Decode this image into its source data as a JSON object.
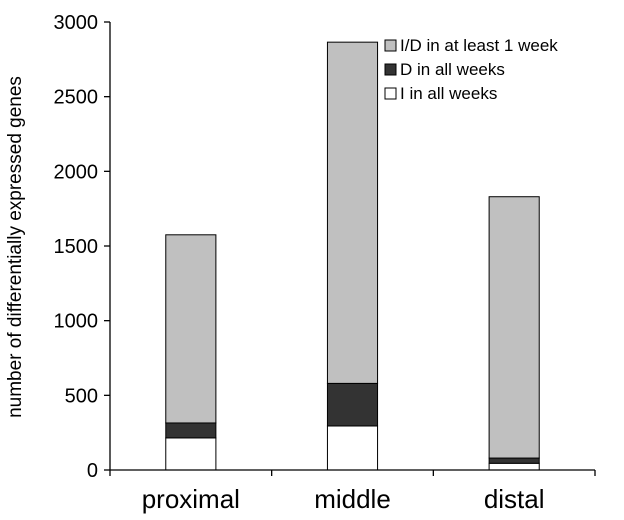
{
  "chart_data": {
    "type": "bar",
    "stacked": true,
    "title": "",
    "xlabel": "",
    "ylabel": "number of differentially expressed genes",
    "ylim": [
      0,
      3000
    ],
    "yticks": [
      0,
      500,
      1000,
      1500,
      2000,
      2500,
      3000
    ],
    "categories": [
      "proximal",
      "middle",
      "distal"
    ],
    "grid": false,
    "legend_position": "top-right",
    "series": [
      {
        "name": "I in all weeks",
        "color": "#ffffff",
        "values": [
          215,
          295,
          45
        ]
      },
      {
        "name": "D in all weeks",
        "color": "#333333",
        "values": [
          100,
          285,
          35
        ]
      },
      {
        "name": "I/D in at least 1 week",
        "color": "#c0c0c0",
        "values": [
          1260,
          2285,
          1750
        ]
      }
    ],
    "legend_order": [
      2,
      1,
      0
    ]
  }
}
